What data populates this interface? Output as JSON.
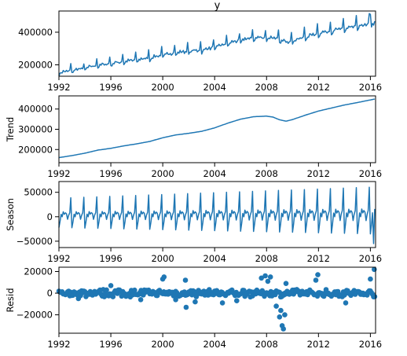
{
  "chart_data": [
    {
      "type": "line",
      "title": "y",
      "ylabel": "",
      "xlim": [
        1992,
        2016.4
      ],
      "ylim": [
        130000,
        530000
      ],
      "xticks": [
        1992,
        1996,
        2000,
        2004,
        2008,
        2012,
        2016
      ],
      "xtick_labels": [
        "1992",
        "1996",
        "2000",
        "2004",
        "2008",
        "2012",
        "2016"
      ],
      "yticks": [
        200000,
        400000
      ],
      "ytick_labels": [
        "200000",
        "400000"
      ],
      "trend_points": {
        "x": [
          1992,
          1993,
          1994,
          1995,
          1996,
          1997,
          1998,
          1999,
          2000,
          2001,
          2002,
          2003,
          2004,
          2005,
          2006,
          2007,
          2008,
          2008.5,
          2009,
          2009.5,
          2010,
          2011,
          2012,
          2013,
          2014,
          2015,
          2016,
          2016.4
        ],
        "y": [
          150000,
          163000,
          178000,
          195000,
          205000,
          218000,
          228000,
          240000,
          258000,
          272000,
          280000,
          288000,
          305000,
          328000,
          350000,
          362000,
          365000,
          362000,
          350000,
          338000,
          345000,
          368000,
          390000,
          405000,
          420000,
          432000,
          445000,
          450000
        ]
      },
      "seasonal_pattern": [
        -15000,
        -8000,
        2000,
        0,
        9000,
        3000,
        4000,
        6000,
        -3000,
        3000,
        5000,
        48000
      ],
      "spike_samples": [
        {
          "x": 1993.9,
          "y": 205000
        },
        {
          "x": 2005.9,
          "y": 390000
        },
        {
          "x": 2007.9,
          "y": 410000
        },
        {
          "x": 2016.0,
          "y": 510000
        }
      ]
    },
    {
      "type": "line",
      "title": "",
      "ylabel": "Trend",
      "xlim": [
        1992,
        2016.4
      ],
      "ylim": [
        135000,
        465000
      ],
      "xticks": [
        1992,
        1996,
        2000,
        2004,
        2008,
        2012,
        2016
      ],
      "xtick_labels": [
        "1992",
        "1996",
        "2000",
        "2004",
        "2008",
        "2012",
        "2016"
      ],
      "yticks": [
        200000,
        300000,
        400000
      ],
      "ytick_labels": [
        "200000",
        "300000",
        "400000"
      ],
      "x": [
        1992,
        1993,
        1994,
        1995,
        1996,
        1997,
        1998,
        1999,
        2000,
        2001,
        2002,
        2003,
        2004,
        2005,
        2006,
        2007,
        2008,
        2008.5,
        2009,
        2009.5,
        2010,
        2011,
        2012,
        2013,
        2014,
        2015,
        2016,
        2016.4
      ],
      "y": [
        160000,
        170000,
        182000,
        197000,
        206000,
        218000,
        228000,
        240000,
        258000,
        272000,
        280000,
        290000,
        307000,
        330000,
        350000,
        362000,
        365000,
        360000,
        347000,
        340000,
        348000,
        370000,
        390000,
        405000,
        420000,
        432000,
        445000,
        450000
      ]
    },
    {
      "type": "line",
      "title": "",
      "ylabel": "Season",
      "xlim": [
        1992,
        2016.4
      ],
      "ylim": [
        -63000,
        72000
      ],
      "xticks": [
        1992,
        1996,
        2000,
        2004,
        2008,
        2012,
        2016
      ],
      "xtick_labels": [
        "1992",
        "1996",
        "2000",
        "2004",
        "2008",
        "2012",
        "2016"
      ],
      "yticks": [
        -50000,
        0,
        50000
      ],
      "ytick_labels": [
        "−50000",
        "0",
        "50000"
      ],
      "pattern": [
        -22000,
        -10000,
        5000,
        0,
        10000,
        5000,
        8000,
        6000,
        -5000,
        3000,
        8000,
        38000
      ],
      "amplitude_start": 1.0,
      "amplitude_end": 1.6,
      "final_dip": -55000
    },
    {
      "type": "scatter",
      "title": "",
      "ylabel": "Resid",
      "xlim": [
        1992,
        2016.4
      ],
      "ylim": [
        -37000,
        24000
      ],
      "xticks": [
        1992,
        1996,
        2000,
        2004,
        2008,
        2012,
        2016
      ],
      "xtick_labels": [
        "1992",
        "1996",
        "2000",
        "2004",
        "2008",
        "2012",
        "2016"
      ],
      "yticks": [
        -20000,
        0,
        20000
      ],
      "ytick_labels": [
        "−20000",
        "0",
        "20000"
      ],
      "outliers": [
        {
          "x": 2000.0,
          "y": 13000
        },
        {
          "x": 2000.1,
          "y": 15000
        },
        {
          "x": 2001.0,
          "y": -6000
        },
        {
          "x": 2001.75,
          "y": 12000
        },
        {
          "x": 2001.8,
          "y": -13000
        },
        {
          "x": 2002.5,
          "y": -8000
        },
        {
          "x": 2004.6,
          "y": -9000
        },
        {
          "x": 2005.7,
          "y": -7000
        },
        {
          "x": 2007.6,
          "y": 14000
        },
        {
          "x": 2007.9,
          "y": 16000
        },
        {
          "x": 2008.1,
          "y": 11000
        },
        {
          "x": 2008.3,
          "y": 15000
        },
        {
          "x": 2008.75,
          "y": -12000
        },
        {
          "x": 2009.0,
          "y": -22000
        },
        {
          "x": 2009.1,
          "y": -16000
        },
        {
          "x": 2009.2,
          "y": -30000
        },
        {
          "x": 2009.3,
          "y": -33000
        },
        {
          "x": 2009.4,
          "y": -20000
        },
        {
          "x": 2009.5,
          "y": 9000
        },
        {
          "x": 2011.8,
          "y": 12000
        },
        {
          "x": 2011.95,
          "y": 17000
        },
        {
          "x": 2014.1,
          "y": -9000
        },
        {
          "x": 2016.0,
          "y": 13000
        },
        {
          "x": 2016.3,
          "y": 22000
        },
        {
          "x": 1996.0,
          "y": 7000
        },
        {
          "x": 1993.5,
          "y": -5000
        },
        {
          "x": 1998.3,
          "y": -6000
        }
      ]
    }
  ]
}
